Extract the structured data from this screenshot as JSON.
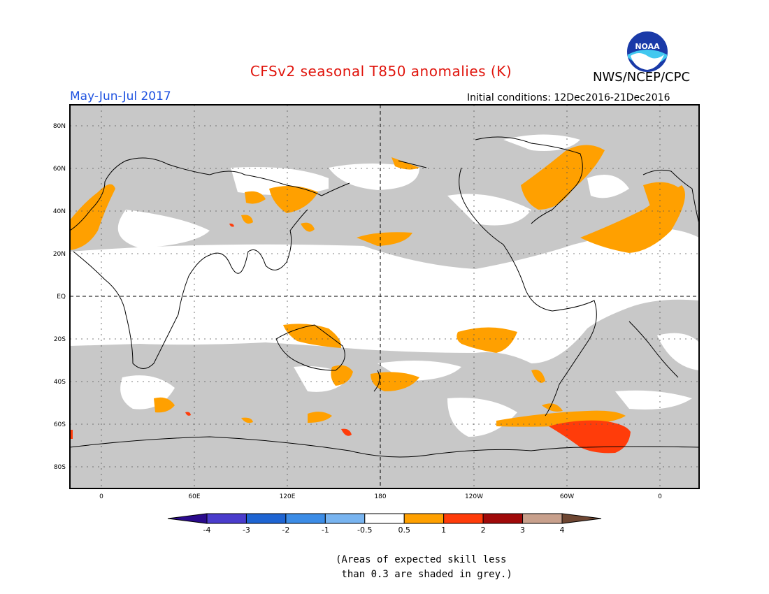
{
  "header": {
    "title": "CFSv2 seasonal T850 anomalies (K)",
    "title_color": "#e0140c",
    "organization": "NWS/NCEP/CPC",
    "period": "May-Jun-Jul 2017",
    "period_color": "#1e52e0",
    "initial_conditions": "Initial conditions: 12Dec2016-21Dec2016",
    "logo_text": "NOAA"
  },
  "map": {
    "projection": "equirectangular",
    "background_color": "#c8c8c8",
    "neutral_color": "#ffffff",
    "lat_labels": [
      "80N",
      "60N",
      "40N",
      "20N",
      "EQ",
      "20S",
      "40S",
      "60S",
      "80S"
    ],
    "lon_labels": [
      "0",
      "60E",
      "120E",
      "180",
      "120W",
      "60W",
      "0"
    ],
    "reference_lines": [
      "EQ",
      "180"
    ]
  },
  "legend": {
    "levels": [
      "-4",
      "-3",
      "-2",
      "-1",
      "-0.5",
      "0.5",
      "1",
      "2",
      "3",
      "4"
    ],
    "colors": [
      "#2a0a8c",
      "#4a3ccc",
      "#1e64d2",
      "#3c8ce6",
      "#78b4f0",
      "#ffffff",
      "#ffa000",
      "#ff3c0a",
      "#a00a0a",
      "#c8a08c",
      "#6e4632"
    ]
  },
  "note": {
    "line1": "(Areas of expected skill less",
    "line2": " than 0.3 are shaded in grey.)"
  }
}
